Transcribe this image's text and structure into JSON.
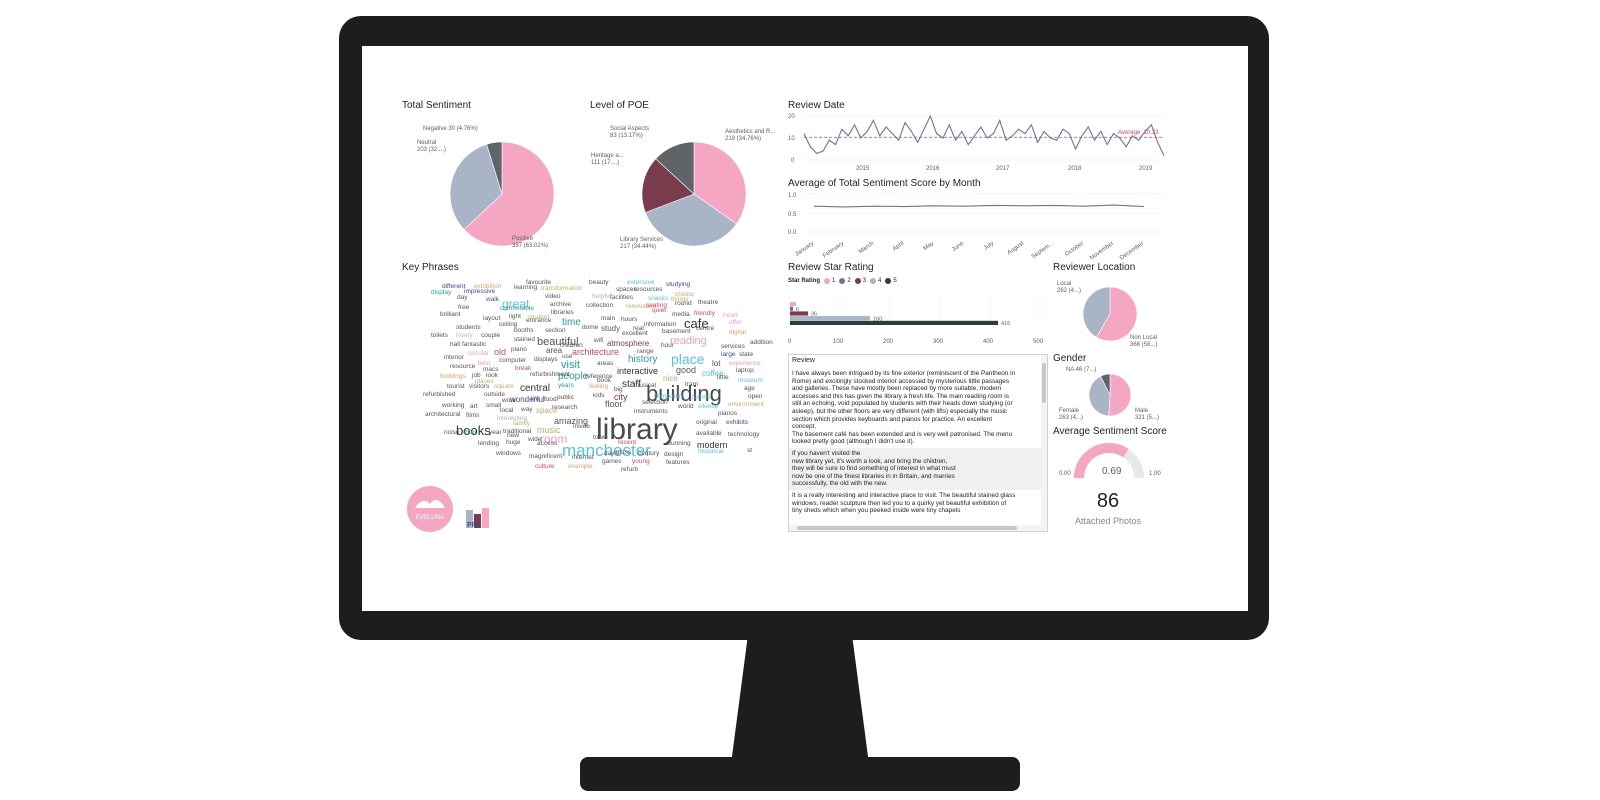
{
  "colors": {
    "pink": "#f4a6c2",
    "slate": "#a9b4c6",
    "charcoal": "#5e6468",
    "wine": "#7a3b4c",
    "line": "#6b7596",
    "avg_line": "#c24b74"
  },
  "total_sentiment": {
    "title": "Total Sentiment",
    "labels": [
      {
        "line1": "Negative 30 (4.76%)",
        "line2": ""
      },
      {
        "line1": "Neutral",
        "line2": "203 (32....)"
      },
      {
        "line1": "Positive",
        "line2": "397 (63.02%)"
      }
    ],
    "slices": [
      {
        "name": "Positive",
        "value": 397,
        "color": "#f4a6c2"
      },
      {
        "name": "Neutral",
        "value": 203,
        "color": "#a9b4c6"
      },
      {
        "name": "Negative",
        "value": 30,
        "color": "#5e6468"
      }
    ]
  },
  "poe": {
    "title": "Level of POE",
    "labels": [
      {
        "line1": "Social Aspects",
        "line2": "83 (13.17%)"
      },
      {
        "line1": "Aesthetics and R...",
        "line2": "219 (34.76%)"
      },
      {
        "line1": "Heritage a...",
        "line2": "111 (17....)"
      },
      {
        "line1": "Library Services",
        "line2": "217 (34.44%)"
      }
    ],
    "slices": [
      {
        "name": "Aesthetics and R...",
        "value": 219,
        "color": "#f4a6c2"
      },
      {
        "name": "Library Services",
        "value": 217,
        "color": "#a9b4c6"
      },
      {
        "name": "Heritage a...",
        "value": 111,
        "color": "#7a3b4c"
      },
      {
        "name": "Social Aspects",
        "value": 83,
        "color": "#5e6468"
      }
    ]
  },
  "review_date": {
    "title": "Review Date",
    "y_ticks": [
      "20",
      "10",
      "0"
    ],
    "x_ticks": [
      "2015",
      "2016",
      "2017",
      "2018",
      "2019"
    ],
    "average_label": "Average: 10.33"
  },
  "sentiment_by_month": {
    "title": "Average of Total Sentiment Score by Month",
    "y_ticks": [
      "1.0",
      "0.5",
      "0.0"
    ],
    "months": [
      "January",
      "February",
      "March",
      "April",
      "May",
      "June",
      "July",
      "August",
      "Septem...",
      "October",
      "November",
      "December"
    ]
  },
  "key_phrases": {
    "title": "Key Phrases"
  },
  "star_rating": {
    "title": "Review Star Rating",
    "legend_title": "Star Rating",
    "legend": [
      {
        "label": "1",
        "color": "#f4a6c2"
      },
      {
        "label": "2",
        "color": "#6b7596"
      },
      {
        "label": "3",
        "color": "#7a3b4c"
      },
      {
        "label": "4",
        "color": "#a9b4c6"
      },
      {
        "label": "5",
        "color": "#2f3a3c"
      }
    ],
    "x_ticks": [
      "0",
      "100",
      "200",
      "300",
      "400",
      "500"
    ],
    "bar_labels": [
      "6",
      "36",
      "160",
      "416"
    ]
  },
  "reviews": {
    "header": "Review",
    "rows": [
      "I have always been intrigued by its fine exterior (reminiscent of the Pantheon in\nRome) and excitingly stocked interior accessed by mysterious little passages\nand galleries. These have mostly been replaced by more suitable, modern\naccesses and this has given the library a fresh life. The main reading room is\nstill an echoing, void populated by students with their heads down studying (or\nasleep), but the other floors are very different (with lifts) especially the music\nsection which provides keyboards and pianos for practice. An excellent\nconcept.\nThe basement café has been extended and is very well patronised. The menu\nlooked pretty good (although I didn't use it).",
      "If you haven't visited the\nnew library yet, it's worth a look, and bring the children,\nthey will be sure to find something of interest in what must\nnow be one of the finest libraries in in Britain, and marries\nsuccessfully, the old with the new.",
      " It is a really interesting and interactive place to visit. The beautiful stained glass\nwindows, reader sculpture then led you to a quirky yet beautiful exhibition of\ntiny sheds which when you peeked inside were tiny chapels"
    ]
  },
  "reviewer_location": {
    "title": "Reviewer Location",
    "labels": [
      {
        "line1": "Local",
        "line2": "262 (4...)"
      },
      {
        "line1": "Non Local",
        "line2": "368 (58...)"
      }
    ],
    "slices": [
      {
        "name": "Non Local",
        "value": 368,
        "color": "#f4a6c2"
      },
      {
        "name": "Local",
        "value": 262,
        "color": "#a9b4c6"
      }
    ]
  },
  "gender": {
    "title": "Gender",
    "labels": [
      {
        "line1": "NA 46 (7...)",
        "line2": ""
      },
      {
        "line1": "Female",
        "line2": "263 (4...)"
      },
      {
        "line1": "Male",
        "line2": "321 (5...)"
      }
    ],
    "slices": [
      {
        "name": "Male",
        "value": 321,
        "color": "#f4a6c2"
      },
      {
        "name": "Female",
        "value": 263,
        "color": "#a9b4c6"
      },
      {
        "name": "NA",
        "value": 46,
        "color": "#5e6468"
      }
    ]
  },
  "avg_sentiment": {
    "title": "Average Sentiment Score",
    "value_label": "0.69",
    "min_label": "0.00",
    "max_label": "1.00",
    "fraction": 0.69
  },
  "attached_photos": {
    "value": "86",
    "caption": "Attached Photos"
  },
  "logos": {
    "eveluna_text": "EVELUNA",
    "ppl_text": "PPL"
  },
  "chart_data": [
    {
      "type": "pie",
      "title": "Total Sentiment",
      "categories": [
        "Positive",
        "Neutral",
        "Negative"
      ],
      "values": [
        397,
        203,
        30
      ]
    },
    {
      "type": "pie",
      "title": "Level of POE",
      "categories": [
        "Aesthetics and R...",
        "Library Services",
        "Heritage a...",
        "Social Aspects"
      ],
      "values": [
        219,
        217,
        111,
        83
      ]
    },
    {
      "type": "line",
      "title": "Review Date",
      "x": [
        "2014",
        "2014",
        "2014",
        "2014",
        "2014",
        "2014",
        "2015",
        "2015",
        "2015",
        "2015",
        "2015",
        "2015",
        "2015",
        "2015",
        "2015",
        "2015",
        "2015",
        "2015",
        "2016",
        "2016",
        "2016",
        "2016",
        "2016",
        "2016",
        "2016",
        "2016",
        "2016",
        "2016",
        "2016",
        "2016",
        "2017",
        "2017",
        "2017",
        "2017",
        "2017",
        "2017",
        "2017",
        "2017",
        "2017",
        "2017",
        "2017",
        "2017",
        "2018",
        "2018",
        "2018",
        "2018",
        "2018",
        "2018",
        "2018",
        "2018",
        "2018",
        "2018",
        "2018",
        "2018",
        "2019",
        "2019",
        "2019",
        "2019"
      ],
      "values": [
        12,
        6,
        3,
        4,
        9,
        7,
        14,
        11,
        16,
        10,
        13,
        18,
        11,
        15,
        12,
        9,
        17,
        13,
        8,
        14,
        20,
        12,
        10,
        16,
        9,
        13,
        7,
        11,
        15,
        10,
        12,
        18,
        9,
        11,
        14,
        12,
        16,
        8,
        13,
        10,
        9,
        14,
        12,
        5,
        11,
        15,
        9,
        13,
        7,
        12,
        10,
        6,
        11,
        9,
        13,
        16,
        8,
        2
      ],
      "reference_line": {
        "label": "Average",
        "value": 10.33
      },
      "ylim": [
        0,
        20
      ]
    },
    {
      "type": "line",
      "title": "Average of Total Sentiment Score by Month",
      "categories": [
        "January",
        "February",
        "March",
        "April",
        "May",
        "June",
        "July",
        "August",
        "Septem...",
        "October",
        "November",
        "December"
      ],
      "values": [
        0.68,
        0.66,
        0.68,
        0.67,
        0.69,
        0.68,
        0.7,
        0.69,
        0.7,
        0.68,
        0.71,
        0.67
      ],
      "ylim": [
        0,
        1.0
      ]
    },
    {
      "type": "bar",
      "orientation": "horizontal",
      "title": "Review Star Rating",
      "categories": [
        "1",
        "2",
        "3",
        "4",
        "5"
      ],
      "values": [
        12,
        6,
        36,
        160,
        416
      ],
      "xlim": [
        0,
        500
      ]
    },
    {
      "type": "pie",
      "title": "Reviewer Location",
      "categories": [
        "Non Local",
        "Local"
      ],
      "values": [
        368,
        262
      ]
    },
    {
      "type": "pie",
      "title": "Gender",
      "categories": [
        "Male",
        "Female",
        "NA"
      ],
      "values": [
        321,
        263,
        46
      ]
    },
    {
      "type": "gauge",
      "title": "Average Sentiment Score",
      "value": 0.69,
      "min": 0,
      "max": 1
    }
  ],
  "word_cloud": [
    {
      "w": "library",
      "c": "#4a4a4a"
    },
    {
      "w": "building",
      "c": "#4a4a4a"
    },
    {
      "w": "manchester",
      "c": "#5bc0de"
    },
    {
      "w": "books",
      "c": "#333333"
    },
    {
      "w": "place",
      "c": "#5bc0de"
    },
    {
      "w": "cafe",
      "c": "#333333"
    },
    {
      "w": "great",
      "c": "#5bc0de"
    },
    {
      "w": "visit",
      "c": "#2a9d8f"
    },
    {
      "w": "beautiful",
      "c": "#555555"
    },
    {
      "w": "history",
      "c": "#2a9d8f"
    },
    {
      "w": "room",
      "c": "#e8a0bf"
    },
    {
      "w": "music",
      "c": "#c9a96e"
    },
    {
      "w": "reading",
      "c": "#e8a0bf"
    },
    {
      "w": "people",
      "c": "#2a9d8f"
    },
    {
      "w": "central",
      "c": "#333333"
    },
    {
      "w": "time",
      "c": "#2a9d8f"
    },
    {
      "w": "interactive",
      "c": "#333333"
    },
    {
      "w": "architecture",
      "c": "#c24b74"
    },
    {
      "w": "staff",
      "c": "#333333"
    },
    {
      "w": "good",
      "c": "#555555"
    },
    {
      "w": "floor",
      "c": "#555555"
    },
    {
      "w": "amazing",
      "c": "#555555"
    },
    {
      "w": "modern",
      "c": "#333333"
    },
    {
      "w": "old",
      "c": "#c24b74"
    },
    {
      "w": "city",
      "c": "#7a3b4c"
    },
    {
      "w": "area",
      "c": "#555555"
    },
    {
      "w": "wonderful",
      "c": "#3c4a8a"
    },
    {
      "w": "atmosphere",
      "c": "#7a3b4c"
    },
    {
      "w": "coffee",
      "c": "#5bc0de"
    },
    {
      "w": "nice",
      "c": "#c9a96e"
    },
    {
      "w": "study",
      "c": "#555555"
    },
    {
      "w": "space",
      "c": "#c9a96e"
    },
    {
      "w": "lot",
      "c": "#555555"
    },
    {
      "w": "exhibition",
      "c": "#c9a96e"
    },
    {
      "w": "different",
      "c": "#3c4a8a"
    },
    {
      "w": "facilities",
      "c": "#555555"
    },
    {
      "w": "information",
      "c": "#555555"
    },
    {
      "w": "interesting",
      "c": "#a9b4c6"
    },
    {
      "w": "fantastic",
      "c": "#555555"
    },
    {
      "w": "original",
      "c": "#555555"
    },
    {
      "w": "computers",
      "c": "#5bc0de"
    },
    {
      "w": "public",
      "c": "#7a3b4c"
    },
    {
      "w": "section",
      "c": "#555555"
    },
    {
      "w": "children",
      "c": "#555555"
    },
    {
      "w": "free",
      "c": "#555555"
    },
    {
      "w": "day",
      "c": "#555555"
    },
    {
      "w": "best",
      "c": "#e8a0bf"
    },
    {
      "w": "years",
      "c": "#2a9d8f"
    },
    {
      "w": "work",
      "c": "#7a3b4c"
    },
    {
      "w": "new",
      "c": "#555555"
    },
    {
      "w": "huge",
      "c": "#555555"
    },
    {
      "w": "glass",
      "c": "#555555"
    },
    {
      "w": "design",
      "c": "#555555"
    },
    {
      "w": "town",
      "c": "#555555"
    },
    {
      "w": "lovely",
      "c": "#e8a0bf"
    },
    {
      "w": "quiet",
      "c": "#c24b74"
    },
    {
      "w": "wifi",
      "c": "#555555"
    },
    {
      "w": "main",
      "c": "#555555"
    },
    {
      "w": "hours",
      "c": "#555555"
    },
    {
      "w": "students",
      "c": "#555555"
    },
    {
      "w": "favourite",
      "c": "#555555"
    },
    {
      "w": "beauty",
      "c": "#555555"
    },
    {
      "w": "studying",
      "c": "#3c4a8a"
    },
    {
      "w": "resources",
      "c": "#555555"
    },
    {
      "w": "spaces",
      "c": "#555555"
    },
    {
      "w": "collection",
      "c": "#555555"
    },
    {
      "w": "helpful",
      "c": "#a9b4c6"
    },
    {
      "w": "snacks",
      "c": "#5bc0de"
    },
    {
      "w": "choice",
      "c": "#c9a96e"
    },
    {
      "w": "theatre",
      "c": "#555555"
    },
    {
      "w": "friendly",
      "c": "#c24b74"
    },
    {
      "w": "centre",
      "c": "#555555"
    },
    {
      "w": "services",
      "c": "#555555"
    },
    {
      "w": "laptop",
      "c": "#555555"
    },
    {
      "w": "museum",
      "c": "#5bc0de"
    },
    {
      "w": "exhibits",
      "c": "#3c4a8a"
    },
    {
      "w": "technology",
      "c": "#555555"
    },
    {
      "w": "features",
      "c": "#555555"
    },
    {
      "w": "young",
      "c": "#c24b74"
    },
    {
      "w": "games",
      "c": "#555555"
    },
    {
      "w": "refurb",
      "c": "#555555"
    },
    {
      "w": "culture",
      "c": "#c24b74"
    },
    {
      "w": "internet",
      "c": "#555555"
    },
    {
      "w": "magnificent",
      "c": "#555555"
    },
    {
      "w": "windows",
      "c": "#555555"
    },
    {
      "w": "lending",
      "c": "#555555"
    },
    {
      "w": "noise",
      "c": "#555555"
    },
    {
      "w": "toilets",
      "c": "#555555"
    },
    {
      "w": "interior",
      "c": "#555555"
    },
    {
      "w": "tourist",
      "c": "#555555"
    },
    {
      "w": "refurbished",
      "c": "#555555"
    },
    {
      "w": "working",
      "c": "#555555"
    },
    {
      "w": "architectural",
      "c": "#555555"
    },
    {
      "w": "brilliant",
      "c": "#555555"
    },
    {
      "w": "display",
      "c": "#2a9d8f"
    },
    {
      "w": "impressive",
      "c": "#3c4a8a"
    },
    {
      "w": "learning",
      "c": "#555555"
    },
    {
      "w": "transformation",
      "c": "#c9a96e"
    },
    {
      "w": "extensive",
      "c": "#5bc0de"
    },
    {
      "w": "renovation",
      "c": "#c9a96e"
    },
    {
      "w": "media",
      "c": "#555555"
    },
    {
      "w": "excellent",
      "c": "#555555"
    },
    {
      "w": "basement",
      "c": "#555555"
    },
    {
      "w": "dome",
      "c": "#555555"
    },
    {
      "w": "entrance",
      "c": "#555555"
    },
    {
      "w": "archive",
      "c": "#555555"
    },
    {
      "w": "libraries",
      "c": "#555555"
    },
    {
      "w": "video",
      "c": "#555555"
    },
    {
      "w": "walk",
      "c": "#555555"
    },
    {
      "w": "layout",
      "c": "#555555"
    },
    {
      "w": "light",
      "c": "#555555"
    },
    {
      "w": "ceiling",
      "c": "#555555"
    },
    {
      "w": "booths",
      "c": "#555555"
    },
    {
      "w": "couple",
      "c": "#555555"
    },
    {
      "w": "stained",
      "c": "#555555"
    },
    {
      "w": "piano",
      "c": "#555555"
    },
    {
      "w": "displays",
      "c": "#555555"
    },
    {
      "w": "computer",
      "c": "#555555"
    },
    {
      "w": "refurbishment",
      "c": "#555555"
    },
    {
      "w": "book",
      "c": "#555555"
    },
    {
      "w": "reference",
      "c": "#555555"
    },
    {
      "w": "areas",
      "c": "#555555"
    },
    {
      "w": "research",
      "c": "#555555"
    },
    {
      "w": "instruments",
      "c": "#555555"
    },
    {
      "w": "selection",
      "c": "#555555"
    },
    {
      "w": "rooms",
      "c": "#5bc0de"
    },
    {
      "w": "world",
      "c": "#555555"
    },
    {
      "w": "silence",
      "c": "#5bc0de"
    },
    {
      "w": "pianos",
      "c": "#555555"
    },
    {
      "w": "available",
      "c": "#555555"
    },
    {
      "w": "historical",
      "c": "#5bc0de"
    },
    {
      "w": "stunning",
      "c": "#555555"
    },
    {
      "w": "century",
      "c": "#555555"
    },
    {
      "w": "days",
      "c": "#555555"
    },
    {
      "w": "access",
      "c": "#555555"
    },
    {
      "w": "traditional",
      "c": "#555555"
    },
    {
      "w": "family",
      "c": "#c9a96e"
    },
    {
      "w": "inside",
      "c": "#555555"
    },
    {
      "w": "local",
      "c": "#555555"
    },
    {
      "w": "way",
      "c": "#555555"
    },
    {
      "w": "life",
      "c": "#555555"
    },
    {
      "w": "food",
      "c": "#555555"
    },
    {
      "w": "outside",
      "c": "#555555"
    },
    {
      "w": "small",
      "c": "#555555"
    },
    {
      "w": "visitors",
      "c": "#555555"
    },
    {
      "w": "job",
      "c": "#555555"
    },
    {
      "w": "look",
      "c": "#555555"
    },
    {
      "w": "places",
      "c": "#c9a96e"
    },
    {
      "w": "resource",
      "c": "#555555"
    },
    {
      "w": "macs",
      "c": "#555555"
    },
    {
      "w": "hall",
      "c": "#555555"
    },
    {
      "w": "circular",
      "c": "#e8a0bf"
    },
    {
      "w": "buildings",
      "c": "#c9a96e"
    },
    {
      "w": "art",
      "c": "#555555"
    },
    {
      "w": "films",
      "c": "#555555"
    },
    {
      "w": "shop",
      "c": "#2a9d8f"
    },
    {
      "w": "year",
      "c": "#555555"
    },
    {
      "w": "kids",
      "c": "#555555"
    },
    {
      "w": "hour",
      "c": "#555555"
    },
    {
      "w": "range",
      "c": "#555555"
    },
    {
      "w": "offer",
      "c": "#e8a0bf"
    },
    {
      "w": "digital",
      "c": "#c9a96e"
    },
    {
      "w": "heart",
      "c": "#e8a0bf"
    },
    {
      "w": "large",
      "c": "#3c4a8a"
    },
    {
      "w": "state",
      "c": "#555555"
    },
    {
      "w": "addition",
      "c": "#555555"
    },
    {
      "w": "experience",
      "c": "#e8a0bf"
    },
    {
      "w": "little",
      "c": "#555555"
    },
    {
      "w": "age",
      "c": "#555555"
    },
    {
      "w": "open",
      "c": "#555555"
    },
    {
      "w": "environment",
      "c": "#c9a96e"
    },
    {
      "w": "tram",
      "c": "#555555"
    },
    {
      "w": "round",
      "c": "#555555"
    },
    {
      "w": "seating",
      "c": "#c24b74"
    },
    {
      "w": "things",
      "c": "#c9a96e"
    },
    {
      "w": "comfortable",
      "c": "#2a9d8f"
    },
    {
      "w": "student",
      "c": "#c9a96e"
    },
    {
      "w": "recent",
      "c": "#c24b74"
    },
    {
      "w": "wide",
      "c": "#555555"
    },
    {
      "w": "musical",
      "c": "#555555"
    },
    {
      "w": "feeling",
      "c": "#c9a96e"
    },
    {
      "w": "real",
      "c": "#555555"
    },
    {
      "w": "use",
      "c": "#555555"
    },
    {
      "w": "break",
      "c": "#c24b74"
    },
    {
      "w": "square",
      "c": "#c9a96e"
    },
    {
      "w": "big",
      "c": "#555555"
    },
    {
      "w": "example",
      "c": "#c9a96e"
    },
    {
      "w": "st",
      "c": "#555555"
    }
  ]
}
